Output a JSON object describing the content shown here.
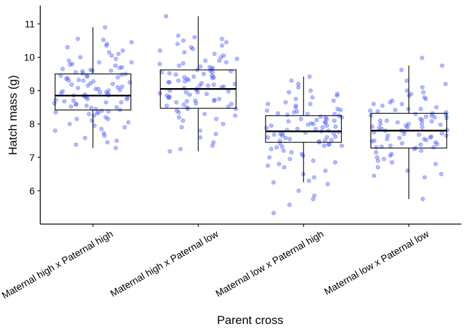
{
  "chart_data": {
    "type": "box",
    "overlay": "jittered points",
    "xlabel": "Parent cross",
    "ylabel": "Hatch mass (g)",
    "categories": [
      "Maternal high x Paternal high",
      "Maternal high x Paternal low",
      "Maternal low x Paternal high",
      "Maternal low x Paternal low"
    ],
    "ylim": [
      5.0,
      11.55
    ],
    "yticks": [
      6,
      7,
      8,
      9,
      10,
      11
    ],
    "grid": false,
    "legend": "none",
    "point_color": "#4a5cff",
    "boxes": [
      {
        "category": "Maternal high x Paternal high",
        "min": 7.28,
        "q1": 8.42,
        "median": 8.85,
        "q3": 9.5,
        "max": 10.9
      },
      {
        "category": "Maternal high x Paternal low",
        "min": 7.18,
        "q1": 8.47,
        "median": 9.05,
        "q3": 9.62,
        "max": 11.23
      },
      {
        "category": "Maternal low x Paternal high",
        "min": 6.25,
        "q1": 7.45,
        "median": 7.78,
        "q3": 8.25,
        "max": 9.42
      },
      {
        "category": "Maternal low x Paternal low",
        "min": 5.75,
        "q1": 7.28,
        "median": 7.8,
        "q3": 8.32,
        "max": 9.75
      }
    ],
    "points": [
      {
        "category": "Maternal high x Paternal high",
        "values": [
          10.9,
          10.55,
          10.52,
          10.45,
          10.4,
          10.35,
          10.3,
          10.2,
          10.15,
          10.1,
          10.05,
          10.0,
          9.95,
          9.9,
          9.85,
          9.8,
          9.78,
          9.75,
          9.7,
          9.68,
          9.65,
          9.62,
          9.6,
          9.58,
          9.55,
          9.52,
          9.5,
          9.48,
          9.45,
          9.42,
          9.4,
          9.38,
          9.35,
          9.32,
          9.3,
          9.28,
          9.25,
          9.22,
          9.2,
          9.18,
          9.15,
          9.12,
          9.1,
          9.08,
          9.05,
          9.02,
          9.0,
          8.98,
          8.95,
          8.92,
          8.9,
          8.88,
          8.86,
          8.85,
          8.84,
          8.82,
          8.8,
          8.78,
          8.75,
          8.72,
          8.7,
          8.68,
          8.65,
          8.62,
          8.6,
          8.58,
          8.55,
          8.52,
          8.5,
          8.48,
          8.45,
          8.42,
          8.4,
          8.38,
          8.35,
          8.32,
          8.3,
          8.25,
          8.2,
          8.15,
          8.1,
          8.05,
          8.0,
          7.95,
          7.9,
          7.85,
          7.8,
          7.72,
          7.65,
          7.58,
          7.5,
          7.45,
          7.38,
          7.28,
          9.85,
          9.6,
          9.3,
          9.05,
          8.95,
          8.65,
          8.35,
          8.15,
          9.45,
          8.75
        ]
      },
      {
        "category": "Maternal high x Paternal low",
        "values": [
          11.23,
          10.65,
          10.6,
          10.55,
          10.5,
          10.45,
          10.4,
          10.35,
          10.3,
          10.25,
          10.2,
          10.15,
          10.1,
          10.05,
          10.0,
          9.95,
          9.9,
          9.85,
          9.82,
          9.8,
          9.75,
          9.72,
          9.7,
          9.68,
          9.65,
          9.62,
          9.6,
          9.58,
          9.55,
          9.52,
          9.5,
          9.48,
          9.45,
          9.42,
          9.4,
          9.38,
          9.35,
          9.32,
          9.3,
          9.28,
          9.25,
          9.22,
          9.2,
          9.18,
          9.15,
          9.12,
          9.1,
          9.08,
          9.05,
          9.02,
          9.0,
          8.98,
          8.95,
          8.92,
          8.9,
          8.88,
          8.85,
          8.82,
          8.8,
          8.78,
          8.75,
          8.72,
          8.7,
          8.68,
          8.65,
          8.62,
          8.6,
          8.58,
          8.55,
          8.52,
          8.5,
          8.45,
          8.4,
          8.35,
          8.3,
          8.25,
          8.2,
          8.15,
          8.1,
          8.0,
          7.9,
          7.8,
          7.7,
          7.6,
          7.45,
          7.35,
          7.25,
          7.18,
          9.9,
          9.55,
          9.25,
          8.95,
          8.7,
          8.45,
          9.4,
          9.15
        ]
      },
      {
        "category": "Maternal low x Paternal high",
        "values": [
          9.42,
          9.3,
          9.2,
          9.1,
          9.0,
          8.95,
          8.9,
          8.85,
          8.8,
          8.75,
          8.7,
          8.65,
          8.6,
          8.55,
          8.5,
          8.45,
          8.42,
          8.4,
          8.38,
          8.35,
          8.32,
          8.3,
          8.28,
          8.25,
          8.22,
          8.2,
          8.18,
          8.15,
          8.12,
          8.1,
          8.08,
          8.05,
          8.02,
          8.0,
          7.98,
          7.95,
          7.92,
          7.9,
          7.88,
          7.85,
          7.82,
          7.8,
          7.78,
          7.76,
          7.74,
          7.72,
          7.7,
          7.68,
          7.65,
          7.62,
          7.6,
          7.58,
          7.55,
          7.52,
          7.5,
          7.48,
          7.45,
          7.42,
          7.4,
          7.38,
          7.35,
          7.32,
          7.3,
          7.25,
          7.2,
          7.15,
          7.1,
          7.05,
          7.0,
          6.95,
          6.9,
          6.85,
          6.8,
          6.75,
          6.7,
          6.6,
          6.5,
          6.4,
          6.3,
          6.25,
          6.2,
          6.0,
          5.85,
          5.75,
          5.58,
          5.33,
          8.6,
          8.3,
          8.05,
          7.85,
          7.6,
          7.35,
          8.15,
          7.95,
          7.7,
          7.5
        ]
      },
      {
        "category": "Maternal low x Paternal low",
        "values": [
          9.98,
          9.75,
          9.62,
          9.3,
          9.2,
          9.1,
          9.0,
          8.95,
          8.9,
          8.85,
          8.8,
          8.75,
          8.7,
          8.65,
          8.6,
          8.55,
          8.5,
          8.45,
          8.42,
          8.4,
          8.38,
          8.35,
          8.32,
          8.3,
          8.28,
          8.25,
          8.22,
          8.2,
          8.18,
          8.15,
          8.12,
          8.1,
          8.08,
          8.05,
          8.02,
          8.0,
          7.98,
          7.95,
          7.92,
          7.9,
          7.88,
          7.85,
          7.82,
          7.8,
          7.78,
          7.75,
          7.72,
          7.7,
          7.68,
          7.65,
          7.62,
          7.6,
          7.58,
          7.55,
          7.52,
          7.5,
          7.48,
          7.45,
          7.42,
          7.4,
          7.38,
          7.35,
          7.32,
          7.3,
          7.28,
          7.25,
          7.2,
          7.15,
          7.1,
          7.05,
          7.0,
          6.95,
          6.9,
          6.85,
          6.8,
          6.7,
          6.6,
          6.5,
          6.45,
          6.4,
          5.75,
          8.6,
          8.25,
          8.0,
          7.8,
          7.55,
          7.3,
          8.45,
          8.1,
          7.9,
          7.65
        ]
      }
    ]
  }
}
